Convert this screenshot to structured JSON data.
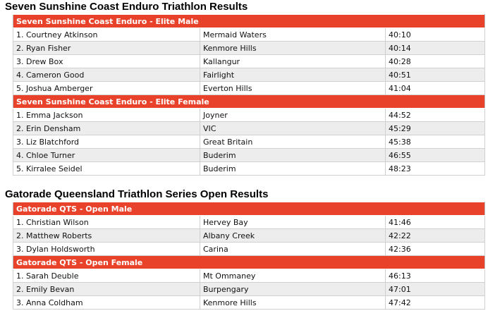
{
  "sections": [
    {
      "title": "Seven Sunshine Coast Enduro Triathlon Results",
      "groups": [
        {
          "heading": "Seven Sunshine Coast Enduro - Elite Male",
          "rows": [
            [
              "1. Courtney Atkinson",
              "Mermaid Waters",
              "40:10"
            ],
            [
              "2. Ryan Fisher",
              "Kenmore Hills",
              "40:14"
            ],
            [
              "3. Drew Box",
              "Kallangur",
              "40:28"
            ],
            [
              "4. Cameron Good",
              "Fairlight",
              "40:51"
            ],
            [
              "5. Joshua Amberger",
              "Everton Hills",
              "41:04"
            ]
          ]
        },
        {
          "heading": "Seven Sunshine Coast Enduro - Elite Female",
          "rows": [
            [
              "1. Emma Jackson",
              "Joyner",
              "44:52"
            ],
            [
              "2. Erin Densham",
              "VIC",
              "45:29"
            ],
            [
              "3. Liz Blatchford",
              "Great Britain",
              "45:38"
            ],
            [
              "4. Chloe Turner",
              "Buderim",
              "46:55"
            ],
            [
              "5. Kirralee Seidel",
              "Buderim",
              "48:23"
            ]
          ]
        }
      ]
    },
    {
      "title": "Gatorade Queensland Triathlon Series Open Results",
      "groups": [
        {
          "heading": "Gatorade QTS - Open Male",
          "rows": [
            [
              "1. Christian Wilson",
              "Hervey Bay",
              "41:46"
            ],
            [
              "2. Matthew Roberts",
              "Albany Creek",
              "42:22"
            ],
            [
              "3. Dylan Holdsworth",
              "Carina",
              "42:36"
            ]
          ]
        },
        {
          "heading": "Gatorade QTS - Open Female",
          "rows": [
            [
              "1. Sarah Deuble",
              "Mt Ommaney",
              "46:13"
            ],
            [
              "2. Emily Bevan",
              "Burpengary",
              "47:01"
            ],
            [
              "3. Anna Coldham",
              "Kenmore Hills",
              "47:42"
            ]
          ]
        }
      ]
    }
  ]
}
